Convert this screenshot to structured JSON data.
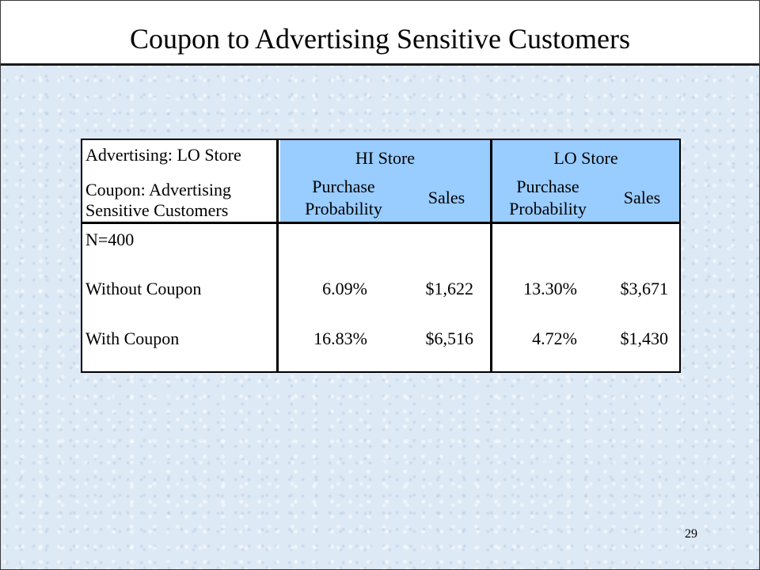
{
  "slide": {
    "title": "Coupon to Advertising Sensitive Customers",
    "page_number": "29"
  },
  "table": {
    "row_header": {
      "line1": "Advertising: LO Store",
      "line2": "Coupon: Advertising",
      "line3": "Sensitive Customers"
    },
    "groups": [
      {
        "name": "HI Store",
        "col1_line1": "Purchase",
        "col1_line2": "Probability",
        "col2": "Sales"
      },
      {
        "name": "LO Store",
        "col1_line1": "Purchase",
        "col1_line2": "Probability",
        "col2": "Sales"
      }
    ],
    "sample_label": "N=400",
    "rows": [
      {
        "label": "Without Coupon",
        "hi_prob": "6.09%",
        "hi_sales": "$1,622",
        "lo_prob": "13.30%",
        "lo_sales": "$3,671"
      },
      {
        "label": "With Coupon",
        "hi_prob": "16.83%",
        "hi_sales": "$6,516",
        "lo_prob": "4.72%",
        "lo_sales": "$1,430"
      }
    ]
  },
  "colors": {
    "header_fill": "#99ccff",
    "background": "#dde9f5"
  }
}
